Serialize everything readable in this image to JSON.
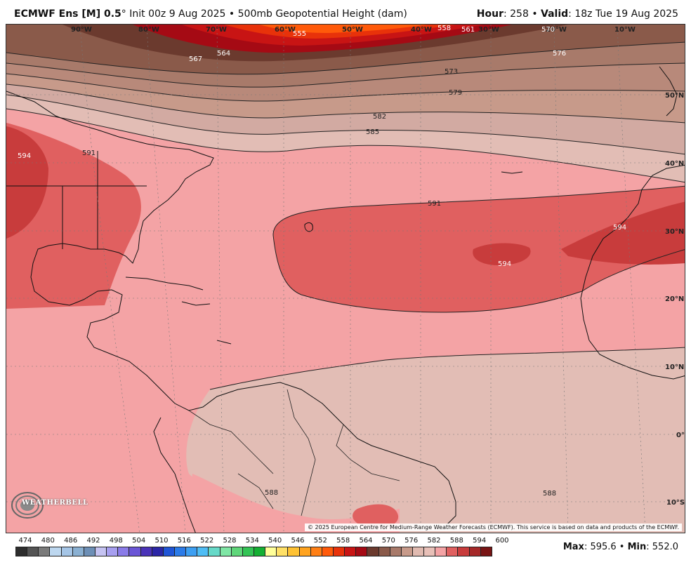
{
  "header": {
    "model": "ECMWF Ens [M] 0.5",
    "degree": "°",
    "init": " Init 00z 9 Aug 2025 • 500mb Geopotential Height (dam)",
    "hour_label": "Hour",
    "hour_value": ": 258 • ",
    "valid_label": "Valid",
    "valid_value": ": 18z Tue 19 Aug 2025"
  },
  "map": {
    "longitude_labels": [
      "90°W",
      "80°W",
      "70°W",
      "60°W",
      "50°W",
      "40°W",
      "30°W",
      "20°W",
      "10°W"
    ],
    "latitude_labels": [
      "50°N",
      "40°N",
      "30°N",
      "20°N",
      "10°N",
      "0°",
      "10°S"
    ],
    "contour_labels": {
      "c555": "555",
      "c558": "558",
      "c561": "561",
      "c564": "564",
      "c567": "567",
      "c570": "570",
      "c573": "573",
      "c576": "576",
      "c579": "579",
      "c582": "582",
      "c585": "585",
      "c588": "588",
      "c591": "591",
      "c594": "594"
    },
    "copyright": "© 2025 European Centre for Medium-Range Weather Forecasts (ECMWF). This service is based on data and products of the ECMWF.",
    "logo_text": "WEATHERBELL"
  },
  "colorbar": {
    "labels": [
      "474",
      "480",
      "486",
      "492",
      "498",
      "504",
      "510",
      "516",
      "522",
      "528",
      "534",
      "540",
      "546",
      "552",
      "558",
      "564",
      "570",
      "576",
      "582",
      "588",
      "594",
      "600"
    ],
    "colors": [
      "#2d2d2d",
      "#545454",
      "#7a7a7a",
      "#bdd7ef",
      "#a5c5e6",
      "#8ab0d2",
      "#6d8fb6",
      "#c5c3f2",
      "#a79ff0",
      "#8a7be8",
      "#6a55d6",
      "#4a33b8",
      "#2b26a6",
      "#1f55d6",
      "#2b7be8",
      "#3d9ff2",
      "#4fbdf5",
      "#66d9c8",
      "#7fe6a5",
      "#5fd67a",
      "#33c455",
      "#14b033",
      "#ffff99",
      "#ffe066",
      "#ffc233",
      "#ffa31f",
      "#ff7f14",
      "#ff5a0a",
      "#e8320a",
      "#c81414",
      "#a50a14",
      "#6b3a2e",
      "#8a5a4a",
      "#a87a6a",
      "#c79a8a",
      "#e0bab0",
      "#e8c0b8",
      "#f4a3a5",
      "#e06060",
      "#c83c3c",
      "#a52828",
      "#781414"
    ]
  },
  "maxmin": {
    "max_label": "Max",
    "max_value": ": 595.6 • ",
    "min_label": "Min",
    "min_value": ": 552.0"
  }
}
